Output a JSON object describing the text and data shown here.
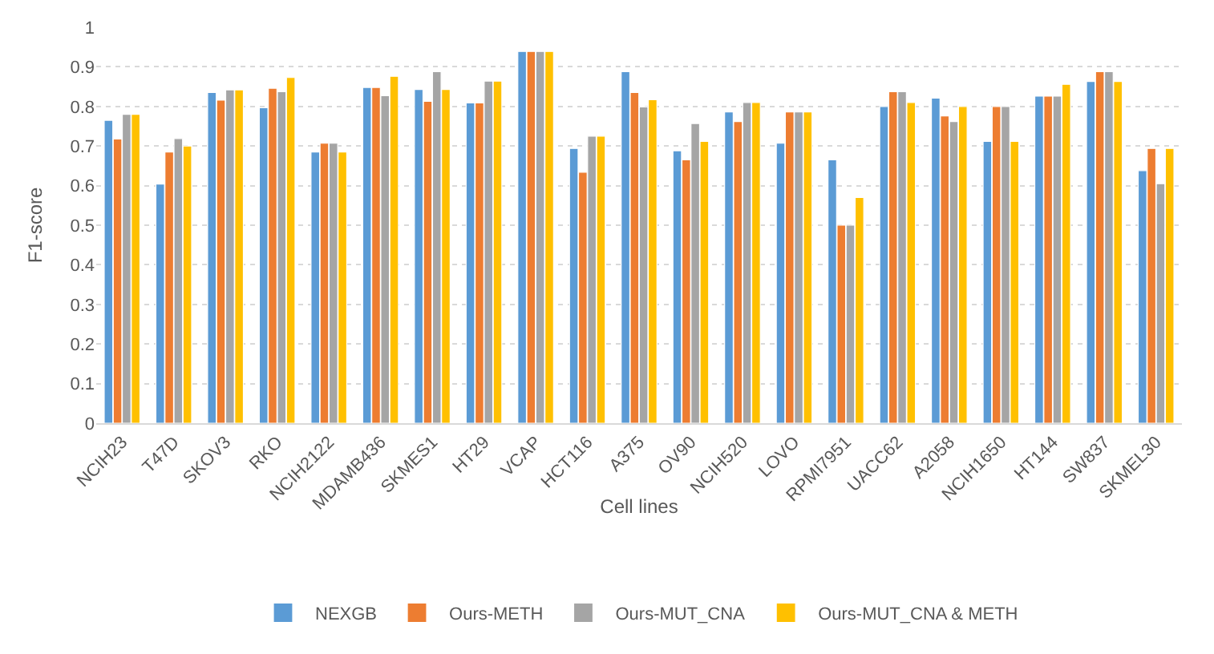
{
  "chart_data": {
    "type": "bar",
    "xlabel": "Cell lines",
    "ylabel": "F1-score",
    "categories": [
      "NCIH23",
      "T47D",
      "SKOV3",
      "RKO",
      "NCIH2122",
      "MDAMB436",
      "SKMES1",
      "HT29",
      "VCAP",
      "HCT116",
      "A375",
      "OV90",
      "NCIH520",
      "LOVO",
      "RPMI7951",
      "UACC62",
      "A2058",
      "NCIH1650",
      "HT144",
      "SW837",
      "SKMEL30"
    ],
    "series": [
      {
        "name": "NEXGB",
        "color": "#5b9bd5",
        "values": [
          0.765,
          0.604,
          0.835,
          0.797,
          0.685,
          0.848,
          0.843,
          0.809,
          0.939,
          0.694,
          0.888,
          0.688,
          0.786,
          0.707,
          0.665,
          0.8,
          0.821,
          0.712,
          0.826,
          0.863,
          0.638
        ]
      },
      {
        "name": "Ours-METH",
        "color": "#ed7d31",
        "values": [
          0.718,
          0.685,
          0.816,
          0.846,
          0.707,
          0.848,
          0.813,
          0.809,
          0.939,
          0.634,
          0.835,
          0.665,
          0.762,
          0.786,
          0.5,
          0.837,
          0.776,
          0.8,
          0.826,
          0.888,
          0.694
        ]
      },
      {
        "name": "Ours-MUT_CNA",
        "color": "#a5a5a5",
        "values": [
          0.78,
          0.719,
          0.842,
          0.837,
          0.707,
          0.827,
          0.888,
          0.864,
          0.939,
          0.725,
          0.799,
          0.757,
          0.81,
          0.786,
          0.5,
          0.837,
          0.762,
          0.8,
          0.826,
          0.888,
          0.605
        ]
      },
      {
        "name": "Ours-MUT_CNA & METH",
        "color": "#ffc000",
        "values": [
          0.78,
          0.7,
          0.842,
          0.873,
          0.685,
          0.876,
          0.843,
          0.864,
          0.939,
          0.725,
          0.817,
          0.712,
          0.81,
          0.786,
          0.57,
          0.81,
          0.8,
          0.712,
          0.856,
          0.863,
          0.694
        ]
      }
    ],
    "ylim": [
      0,
      1
    ],
    "yticks": [
      0,
      0.1,
      0.2,
      0.3,
      0.4,
      0.5,
      0.6,
      0.7,
      0.8,
      0.9,
      1
    ],
    "grid": "y",
    "legend": "bottom"
  }
}
